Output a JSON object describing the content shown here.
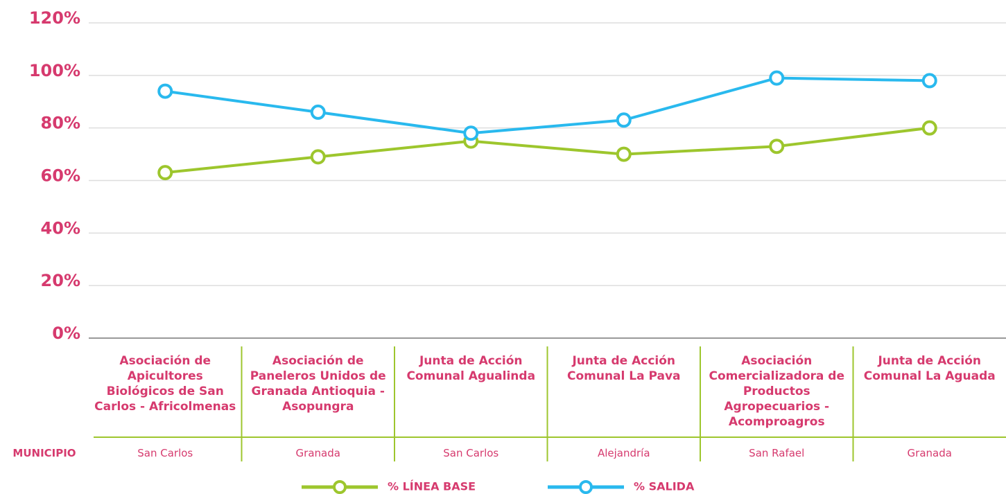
{
  "chart_data": {
    "type": "line",
    "categories": [
      "Asociación de Apicultores Biológicos de San Carlos - Africolmenas",
      "Asociación de Paneleros Unidos de Granada Antioquia - Asopungra",
      "Junta de Acción Comunal Agualinda",
      "Junta de Acción Comunal La Pava",
      "Asociación Comercializadora de Productos Agropecuarios - Acomproagros",
      "Junta de Acción Comunal La Aguada"
    ],
    "row_label": "MUNICIPIO",
    "municipios": [
      "San Carlos",
      "Granada",
      "San Carlos",
      "Alejandría",
      "San Rafael",
      "Granada"
    ],
    "series": [
      {
        "name": "% LÍNEA BASE",
        "color": "#9dc62d",
        "values": [
          63,
          69,
          75,
          70,
          73,
          80
        ]
      },
      {
        "name": "% SALIDA",
        "color": "#29b9ee",
        "values": [
          94,
          86,
          78,
          83,
          99,
          98
        ]
      }
    ],
    "ylim": [
      0,
      120
    ],
    "yticks": [
      {
        "value": 0,
        "label": "0%"
      },
      {
        "value": 20,
        "label": "20%"
      },
      {
        "value": 40,
        "label": "40%"
      },
      {
        "value": 60,
        "label": "60%"
      },
      {
        "value": 80,
        "label": "80%"
      },
      {
        "value": 100,
        "label": "100%"
      },
      {
        "value": 120,
        "label": "120%"
      }
    ],
    "grid": true
  }
}
